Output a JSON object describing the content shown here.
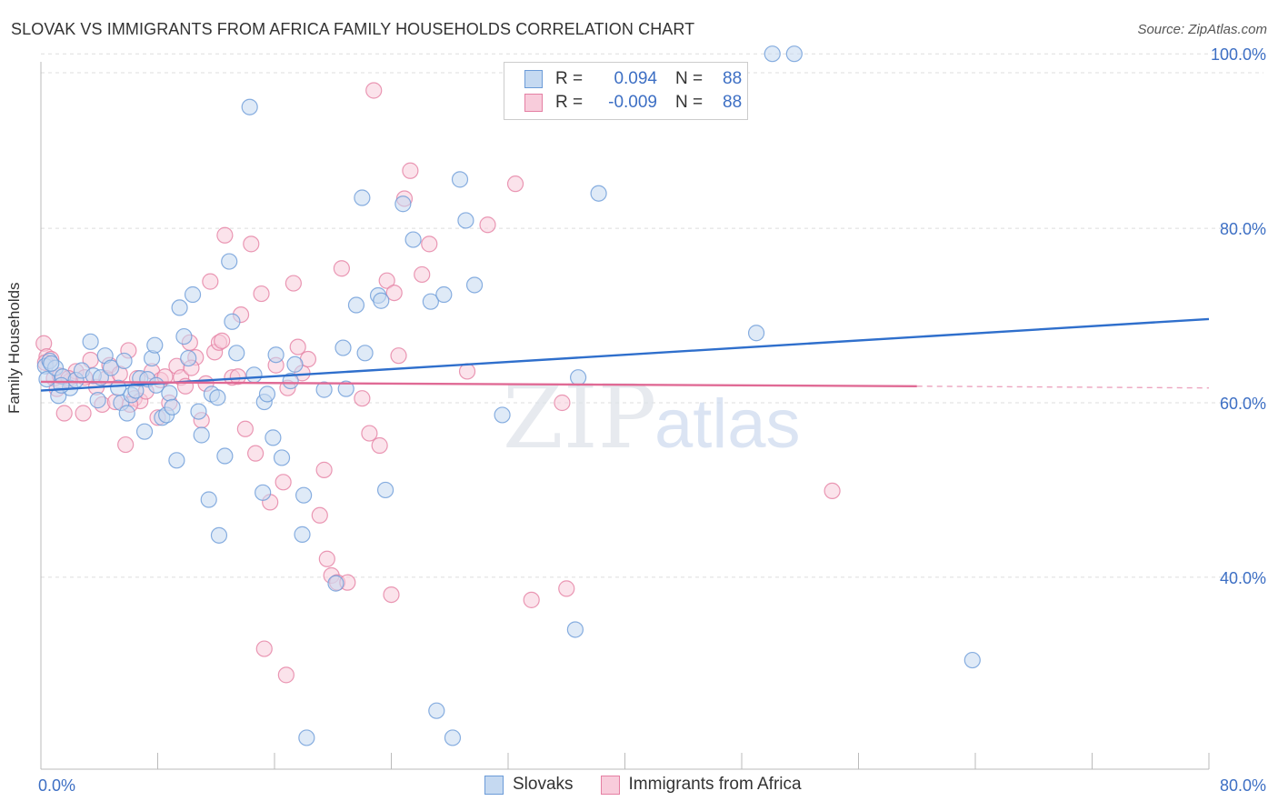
{
  "title": "SLOVAK VS IMMIGRANTS FROM AFRICA FAMILY HOUSEHOLDS CORRELATION CHART",
  "source": "Source: ZipAtlas.com",
  "legend_stats": [
    {
      "r_label": "R =",
      "r_value": "0.094",
      "n_label": "N =",
      "n_value": "88",
      "color": "#6b9bd8",
      "fill": "#c5d9f1"
    },
    {
      "r_label": "R =",
      "r_value": "-0.009",
      "n_label": "N =",
      "n_value": "88",
      "color": "#e57fa3",
      "fill": "#f8ccdb"
    }
  ],
  "watermark": {
    "zip": "ZIP",
    "atlas": "atlas"
  },
  "chart_data": {
    "type": "scatter",
    "title": "SLOVAK VS IMMIGRANTS FROM AFRICA FAMILY HOUSEHOLDS CORRELATION CHART",
    "xlabel": "",
    "ylabel": "Family Households",
    "xlim": [
      0,
      80
    ],
    "ylim": [
      18,
      102
    ],
    "x_tick_labels": [
      "0.0%",
      "80.0%"
    ],
    "y_ticks": [
      40,
      60,
      80,
      100
    ],
    "y_tick_labels": [
      "40.0%",
      "60.0%",
      "80.0%",
      "100.0%"
    ],
    "grid": true,
    "legend_position": "top-center",
    "series": [
      {
        "name": "Slovaks",
        "color": "#6b9bd8",
        "fill": "#c5d9f1",
        "trend": {
          "x": [
            0,
            80
          ],
          "y": [
            61.4,
            69.6
          ]
        },
        "points": [
          [
            0.3,
            64.2
          ],
          [
            0.4,
            62.7
          ],
          [
            0.6,
            64.8
          ],
          [
            1.0,
            64.0
          ],
          [
            1.2,
            60.8
          ],
          [
            1.5,
            63.0
          ],
          [
            2.0,
            61.7
          ],
          [
            2.4,
            62.6
          ],
          [
            2.8,
            63.7
          ],
          [
            3.4,
            67.0
          ],
          [
            3.6,
            63.1
          ],
          [
            4.1,
            62.9
          ],
          [
            4.4,
            65.4
          ],
          [
            4.8,
            64.0
          ],
          [
            5.3,
            61.7
          ],
          [
            5.5,
            60.0
          ],
          [
            5.7,
            64.8
          ],
          [
            5.9,
            58.8
          ],
          [
            6.2,
            60.9
          ],
          [
            6.5,
            61.4
          ],
          [
            6.8,
            62.8
          ],
          [
            7.1,
            56.7
          ],
          [
            7.3,
            62.7
          ],
          [
            7.6,
            65.1
          ],
          [
            7.8,
            66.6
          ],
          [
            8.3,
            58.3
          ],
          [
            8.6,
            58.6
          ],
          [
            8.8,
            61.1
          ],
          [
            9.3,
            53.4
          ],
          [
            9.5,
            70.9
          ],
          [
            9.8,
            67.6
          ],
          [
            10.1,
            65.1
          ],
          [
            10.4,
            72.4
          ],
          [
            10.8,
            59.0
          ],
          [
            11.0,
            56.3
          ],
          [
            11.7,
            61.0
          ],
          [
            12.1,
            60.6
          ],
          [
            12.6,
            53.9
          ],
          [
            12.9,
            76.2
          ],
          [
            13.1,
            69.3
          ],
          [
            13.4,
            65.7
          ],
          [
            14.3,
            93.9
          ],
          [
            14.6,
            63.2
          ],
          [
            15.3,
            60.1
          ],
          [
            15.5,
            61.0
          ],
          [
            15.9,
            56.0
          ],
          [
            16.1,
            65.5
          ],
          [
            16.5,
            53.7
          ],
          [
            17.1,
            62.5
          ],
          [
            17.4,
            64.4
          ],
          [
            17.9,
            44.9
          ],
          [
            18.0,
            49.4
          ],
          [
            19.4,
            61.5
          ],
          [
            20.2,
            39.3
          ],
          [
            20.7,
            66.3
          ],
          [
            20.9,
            61.6
          ],
          [
            21.6,
            71.2
          ],
          [
            22.2,
            65.7
          ],
          [
            22.0,
            83.5
          ],
          [
            23.1,
            72.3
          ],
          [
            23.3,
            71.7
          ],
          [
            23.6,
            50.0
          ],
          [
            24.8,
            82.8
          ],
          [
            25.5,
            78.7
          ],
          [
            26.7,
            71.6
          ],
          [
            27.1,
            24.7
          ],
          [
            27.6,
            72.4
          ],
          [
            28.2,
            21.6
          ],
          [
            28.7,
            85.6
          ],
          [
            29.1,
            80.9
          ],
          [
            29.7,
            73.5
          ],
          [
            31.6,
            58.6
          ],
          [
            36.8,
            62.9
          ],
          [
            36.6,
            34.0
          ],
          [
            38.2,
            84.0
          ],
          [
            49.0,
            68.0
          ],
          [
            50.1,
            100.0
          ],
          [
            51.6,
            100.0
          ],
          [
            63.8,
            30.5
          ],
          [
            0.7,
            64.5
          ],
          [
            1.4,
            62.0
          ],
          [
            3.9,
            60.3
          ],
          [
            7.9,
            62.0
          ],
          [
            9.0,
            59.5
          ],
          [
            11.5,
            48.9
          ],
          [
            15.2,
            49.7
          ],
          [
            18.2,
            21.6
          ],
          [
            12.2,
            44.8
          ]
        ]
      },
      {
        "name": "Immigrants from Africa",
        "color": "#e57fa3",
        "fill": "#f8ccdb",
        "trend": {
          "x": [
            0,
            60
          ],
          "y": [
            62.4,
            61.9
          ]
        },
        "trend_dashed": {
          "x": [
            60,
            80
          ],
          "y": [
            61.9,
            61.7
          ]
        },
        "points": [
          [
            0.2,
            66.8
          ],
          [
            0.4,
            65.3
          ],
          [
            0.7,
            65.0
          ],
          [
            0.9,
            62.8
          ],
          [
            1.1,
            61.6
          ],
          [
            1.3,
            63.1
          ],
          [
            1.6,
            58.8
          ],
          [
            2.0,
            62.5
          ],
          [
            2.4,
            63.6
          ],
          [
            2.9,
            58.8
          ],
          [
            3.4,
            64.9
          ],
          [
            3.8,
            61.8
          ],
          [
            4.2,
            59.8
          ],
          [
            4.5,
            62.8
          ],
          [
            4.7,
            64.3
          ],
          [
            5.1,
            60.1
          ],
          [
            5.4,
            63.3
          ],
          [
            5.8,
            55.2
          ],
          [
            6.0,
            66.0
          ],
          [
            6.4,
            60.5
          ],
          [
            6.6,
            62.8
          ],
          [
            6.8,
            60.2
          ],
          [
            7.2,
            61.3
          ],
          [
            7.6,
            63.6
          ],
          [
            8.0,
            58.3
          ],
          [
            8.2,
            62.6
          ],
          [
            8.5,
            63.0
          ],
          [
            8.8,
            60.0
          ],
          [
            9.3,
            64.2
          ],
          [
            9.6,
            62.9
          ],
          [
            9.9,
            61.9
          ],
          [
            10.2,
            66.9
          ],
          [
            10.6,
            65.2
          ],
          [
            11.3,
            62.2
          ],
          [
            11.6,
            73.9
          ],
          [
            11.9,
            65.8
          ],
          [
            12.2,
            66.9
          ],
          [
            12.6,
            79.2
          ],
          [
            13.1,
            62.9
          ],
          [
            13.5,
            63.0
          ],
          [
            14.0,
            57.0
          ],
          [
            14.4,
            78.2
          ],
          [
            14.7,
            54.2
          ],
          [
            15.1,
            72.5
          ],
          [
            15.3,
            31.8
          ],
          [
            15.7,
            48.6
          ],
          [
            16.1,
            64.3
          ],
          [
            16.6,
            50.9
          ],
          [
            16.9,
            61.7
          ],
          [
            17.3,
            73.7
          ],
          [
            17.6,
            66.4
          ],
          [
            17.9,
            63.4
          ],
          [
            18.3,
            65.0
          ],
          [
            19.1,
            47.1
          ],
          [
            19.6,
            42.1
          ],
          [
            19.9,
            40.2
          ],
          [
            20.3,
            39.4
          ],
          [
            20.6,
            75.4
          ],
          [
            21.0,
            39.4
          ],
          [
            22.0,
            60.5
          ],
          [
            22.5,
            56.5
          ],
          [
            22.8,
            95.8
          ],
          [
            23.2,
            55.1
          ],
          [
            23.7,
            74.0
          ],
          [
            24.2,
            72.6
          ],
          [
            24.5,
            65.4
          ],
          [
            24.9,
            83.4
          ],
          [
            25.3,
            86.6
          ],
          [
            26.1,
            74.7
          ],
          [
            26.6,
            78.2
          ],
          [
            29.2,
            63.6
          ],
          [
            30.6,
            80.4
          ],
          [
            32.5,
            85.1
          ],
          [
            33.6,
            37.4
          ],
          [
            35.7,
            60.0
          ],
          [
            36.0,
            38.7
          ],
          [
            54.2,
            49.9
          ],
          [
            0.3,
            64.6
          ],
          [
            1.9,
            62.8
          ],
          [
            3.0,
            62.9
          ],
          [
            6.1,
            59.8
          ],
          [
            10.3,
            64.0
          ],
          [
            12.4,
            67.1
          ],
          [
            13.7,
            70.1
          ],
          [
            16.8,
            28.8
          ],
          [
            19.4,
            52.3
          ],
          [
            24.0,
            38.0
          ],
          [
            11.0,
            58.0
          ]
        ]
      }
    ]
  }
}
